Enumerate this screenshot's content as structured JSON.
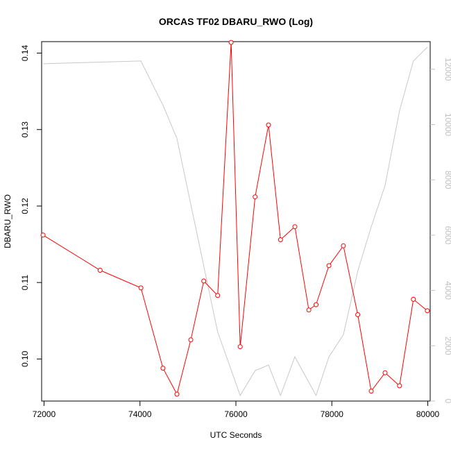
{
  "chart_data": {
    "type": "line",
    "title": "ORCAS TF02 DBARU_RWO (Log)",
    "xlabel": "UTC Seconds",
    "ylabel": "DBARU_RWO",
    "y2label": "",
    "xlim": [
      71950,
      80050
    ],
    "ylim": [
      0.0945,
      0.1415
    ],
    "y2lim": [
      0,
      13000
    ],
    "x_ticks": [
      72000,
      74000,
      76000,
      78000,
      80000
    ],
    "y_ticks": [
      0.1,
      0.11,
      0.12,
      0.13,
      0.14
    ],
    "y2_ticks": [
      0,
      2000,
      4000,
      6000,
      8000,
      10000,
      12000
    ],
    "grid": false,
    "legend": "none",
    "colors": {
      "primary_series": "#ff0000",
      "secondary_series": "#c8c8c8",
      "axes": "#000000",
      "right_axis": "#c0c0c0"
    },
    "series": [
      {
        "axis": "left",
        "marker": "open-circle",
        "x": [
          71980,
          73170,
          74020,
          74480,
          74770,
          75060,
          75330,
          75620,
          75900,
          76090,
          76400,
          76680,
          76930,
          77230,
          77520,
          77670,
          77940,
          78240,
          78540,
          78820,
          79110,
          79410,
          79700,
          79990
        ],
        "values": [
          0.1162,
          0.1116,
          0.1093,
          0.0988,
          0.0954,
          0.1025,
          0.1102,
          0.1083,
          0.1414,
          0.1016,
          0.1212,
          0.1306,
          0.1156,
          0.1173,
          0.1064,
          0.1071,
          0.1122,
          0.1148,
          0.1058,
          0.0958,
          0.0982,
          0.0965,
          0.1078,
          0.1063
        ]
      },
      {
        "axis": "right",
        "marker": "none",
        "x": [
          71980,
          74020,
          74480,
          74770,
          75620,
          76090,
          76400,
          76680,
          76930,
          77230,
          77670,
          77940,
          78240,
          78540,
          78820,
          79110,
          79410,
          79700,
          79990
        ],
        "values": [
          12200,
          12300,
          10700,
          9500,
          2500,
          200,
          1100,
          1300,
          200,
          1600,
          200,
          1600,
          2400,
          4700,
          6300,
          7800,
          10500,
          12300,
          12800
        ]
      }
    ]
  }
}
